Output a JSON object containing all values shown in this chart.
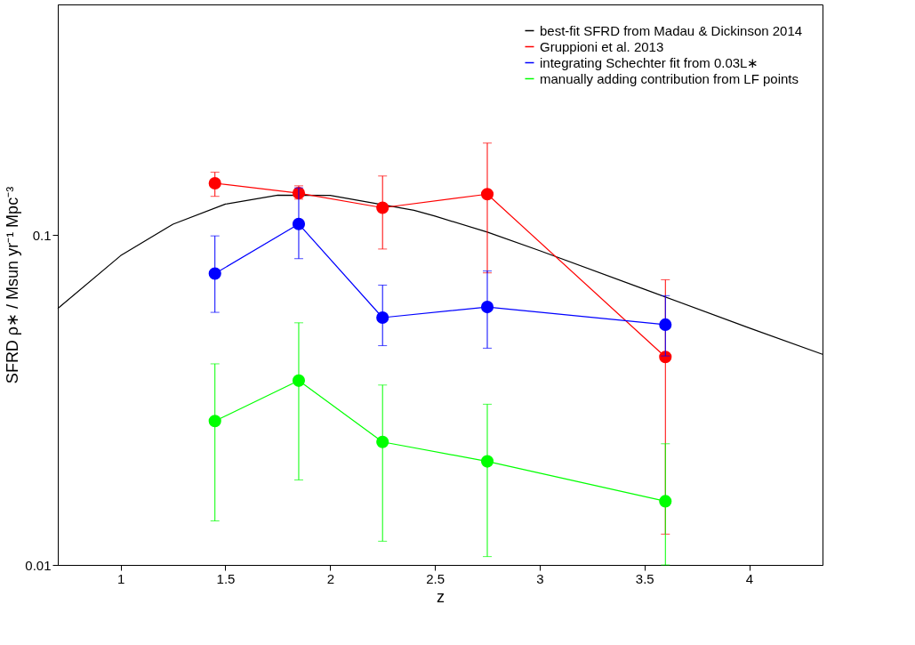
{
  "chart_data": {
    "type": "line",
    "xlabel": "z",
    "ylabel": "SFRD ρ∗ / Msun yr⁻¹ Mpc⁻³",
    "xlim": [
      0.7,
      4.35
    ],
    "ylim": [
      0.01,
      0.5
    ],
    "log": "y",
    "xticks": [
      1,
      1.5,
      2,
      2.5,
      3,
      3.5,
      4
    ],
    "yticks": [
      0.01,
      0.1
    ],
    "grid": false,
    "legend": "top right",
    "series": [
      {
        "name": "best-fit SFRD from Madau & Dickinson 2014",
        "color": "#000000",
        "marker": "none",
        "x": [
          0.7,
          1,
          1.25,
          1.5,
          1.75,
          2,
          2.4,
          2.5,
          2.75,
          3,
          3.5,
          4,
          4.35
        ],
        "values": [
          0.0599,
          0.0866,
          0.1079,
          0.1241,
          0.1321,
          0.1319,
          0.1188,
          0.1141,
          0.1021,
          0.0897,
          0.0685,
          0.0523,
          0.0435
        ]
      },
      {
        "name": "Gruppioni et al. 2013",
        "color": "#ff0000",
        "marker": "circle",
        "x": [
          1.45,
          1.85,
          2.25,
          2.75,
          3.6
        ],
        "values": [
          0.1435,
          0.134,
          0.121,
          0.133,
          0.0427
        ],
        "errors": [
          [
            0.131,
            0.155
          ],
          [
            0.1285,
            0.141
          ],
          [
            0.0907,
            0.151
          ],
          [
            0.0768,
            0.19
          ],
          [
            0.0124,
            0.0732
          ]
        ]
      },
      {
        "name": "integrating Schechter fit from 0.03L∗",
        "color": "#0000ff",
        "marker": "circle",
        "x": [
          1.45,
          1.85,
          2.25,
          2.75,
          3.6
        ],
        "values": [
          0.0764,
          0.108,
          0.0562,
          0.0605,
          0.0535
        ],
        "errors": [
          [
            0.0583,
            0.0994
          ],
          [
            0.0848,
            0.139
          ],
          [
            0.0462,
            0.0705
          ],
          [
            0.0454,
            0.0778
          ],
          [
            0.043,
            0.0655
          ]
        ]
      },
      {
        "name": "manually adding contribution from LF points",
        "color": "#00ff00",
        "marker": "circle",
        "x": [
          1.45,
          1.85,
          2.25,
          2.75,
          3.6
        ],
        "values": [
          0.0273,
          0.0362,
          0.0236,
          0.0206,
          0.0156
        ],
        "errors": [
          [
            0.0136,
            0.0407
          ],
          [
            0.0181,
            0.0542
          ],
          [
            0.0118,
            0.0351
          ],
          [
            0.0106,
            0.0307
          ],
          [
            0.01,
            0.0233
          ]
        ]
      }
    ]
  }
}
